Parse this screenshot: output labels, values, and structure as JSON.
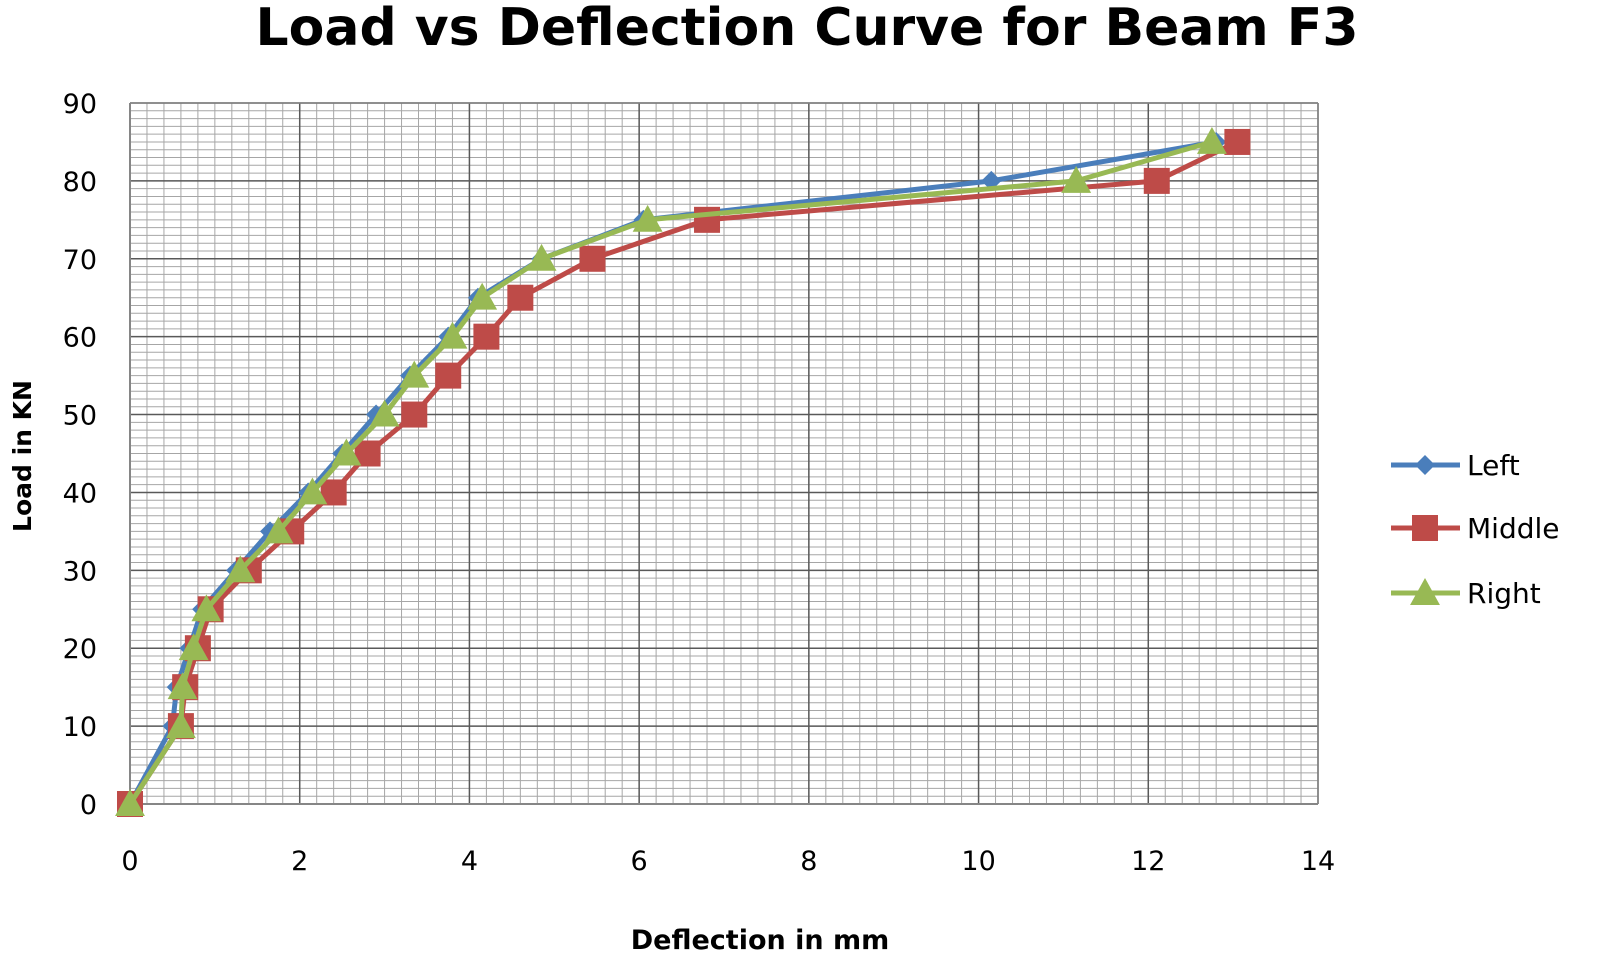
{
  "chart_data": {
    "type": "line",
    "title": "Load vs Deflection Curve for Beam F3",
    "xlabel": "Deflection in mm",
    "ylabel": "Load in KN",
    "xlim": [
      0,
      14
    ],
    "ylim": [
      0,
      90
    ],
    "x_ticks": [
      "0",
      "2",
      "4",
      "6",
      "8",
      "10",
      "12",
      "14"
    ],
    "y_ticks": [
      "0",
      "10",
      "20",
      "30",
      "40",
      "50",
      "60",
      "70",
      "80",
      "90"
    ],
    "grid": true,
    "legend_position": "right",
    "series": [
      {
        "name": "Left",
        "color": "#4a7ebb",
        "marker": "diamond",
        "points": [
          [
            0,
            0
          ],
          [
            0.5,
            10
          ],
          [
            0.55,
            15
          ],
          [
            0.7,
            20
          ],
          [
            0.85,
            25
          ],
          [
            1.25,
            30
          ],
          [
            1.65,
            35
          ],
          [
            2.1,
            40
          ],
          [
            2.5,
            45
          ],
          [
            2.9,
            50
          ],
          [
            3.3,
            55
          ],
          [
            3.75,
            60
          ],
          [
            4.1,
            65
          ],
          [
            4.85,
            70
          ],
          [
            6.05,
            75
          ],
          [
            10.15,
            80
          ],
          [
            12.8,
            85
          ]
        ]
      },
      {
        "name": "Middle",
        "color": "#be4b48",
        "marker": "square",
        "points": [
          [
            0,
            0
          ],
          [
            0.6,
            10
          ],
          [
            0.65,
            15
          ],
          [
            0.8,
            20
          ],
          [
            0.95,
            25
          ],
          [
            1.4,
            30
          ],
          [
            1.9,
            35
          ],
          [
            2.4,
            40
          ],
          [
            2.8,
            45
          ],
          [
            3.35,
            50
          ],
          [
            3.75,
            55
          ],
          [
            4.2,
            60
          ],
          [
            4.6,
            65
          ],
          [
            5.45,
            70
          ],
          [
            6.8,
            75
          ],
          [
            12.1,
            80
          ],
          [
            13.05,
            85
          ]
        ]
      },
      {
        "name": "Right",
        "color": "#98b954",
        "marker": "triangle",
        "points": [
          [
            0,
            0
          ],
          [
            0.6,
            10
          ],
          [
            0.62,
            15
          ],
          [
            0.75,
            20
          ],
          [
            0.9,
            25
          ],
          [
            1.3,
            30
          ],
          [
            1.75,
            35
          ],
          [
            2.15,
            40
          ],
          [
            2.55,
            45
          ],
          [
            3.0,
            50
          ],
          [
            3.35,
            55
          ],
          [
            3.8,
            60
          ],
          [
            4.15,
            65
          ],
          [
            4.85,
            70
          ],
          [
            6.1,
            75
          ],
          [
            11.15,
            80
          ],
          [
            12.75,
            85
          ]
        ]
      }
    ]
  }
}
